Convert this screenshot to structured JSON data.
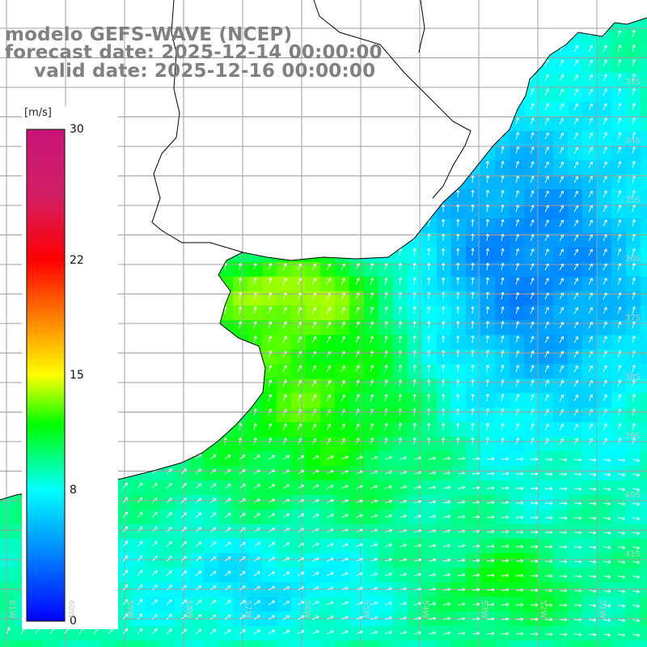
{
  "title": {
    "line1": "modelo GEFS-WAVE (NCEP)",
    "line2": "forecast date: 2025-12-14 00:00:00",
    "line3": "valid date: 2025-12-16 00:00:00"
  },
  "legend": {
    "unit": "[m/s]",
    "min": 0,
    "max": 30,
    "ticks": [
      {
        "value": 30,
        "label": "30"
      },
      {
        "value": 22,
        "label": "22"
      },
      {
        "value": 15,
        "label": "15"
      },
      {
        "value": 8,
        "label": "8"
      },
      {
        "value": 0,
        "label": "0"
      }
    ],
    "colors": [
      "#0000ff",
      "#0080ff",
      "#00ffff",
      "#00ff00",
      "#ffff00",
      "#ff8000",
      "#ff0000",
      "#d0206a",
      "#c81478"
    ]
  },
  "map": {
    "land_color": "#ffffff",
    "coast_color": "#000000",
    "grid_color": "#aaaaaa",
    "lat_labels": [
      "33S",
      "34S",
      "35S",
      "36S",
      "37S",
      "38S",
      "39S",
      "40S",
      "41S"
    ],
    "lon_labels": [
      "61W",
      "60W",
      "59W",
      "58W",
      "57W",
      "56W",
      "55W",
      "54W",
      "53W",
      "52W",
      "51W"
    ]
  }
}
